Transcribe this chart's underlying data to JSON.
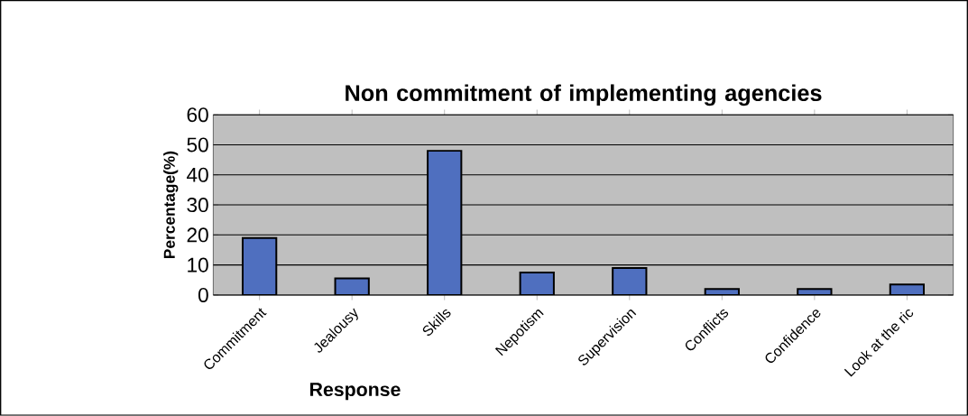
{
  "chart_data": {
    "type": "bar",
    "title": "Non commitment of implementing agencies",
    "xlabel": "Response",
    "ylabel": "Percentage(%)",
    "categories": [
      "Commitment",
      "Jealousy",
      "Skills",
      "Nepotism",
      "Supervision",
      "Conflicts",
      "Confidence",
      "Look at the ric"
    ],
    "values": [
      19,
      5.5,
      48,
      7.5,
      9,
      2,
      2,
      3.5
    ],
    "color": "#4f6fbf",
    "ylim": [
      0,
      60
    ],
    "yticks": [
      0,
      10,
      20,
      30,
      40,
      50,
      60
    ],
    "grid": "y"
  }
}
